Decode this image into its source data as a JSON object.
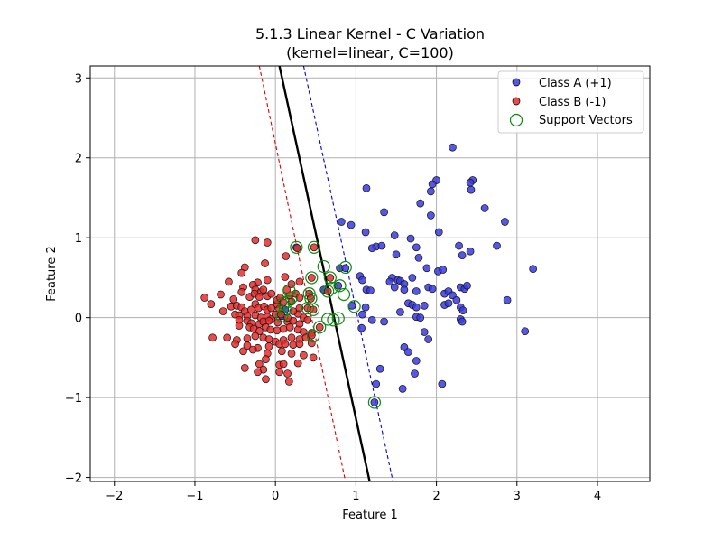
{
  "chart_data": {
    "type": "scatter",
    "title": "5.1.3 Linear Kernel - C Variation",
    "subtitle": "(kernel=linear, C=100)",
    "xlabel": "Feature 1",
    "ylabel": "Feature 2",
    "xlim": [
      -2.3,
      4.65
    ],
    "ylim": [
      -2.05,
      3.15
    ],
    "xticks": [
      -2,
      -1,
      0,
      1,
      2,
      3,
      4
    ],
    "yticks": [
      -2,
      -1,
      0,
      1,
      2,
      3
    ],
    "xtick_labels": [
      "−2",
      "−1",
      "0",
      "1",
      "2",
      "3",
      "4"
    ],
    "ytick_labels": [
      "−2",
      "−1",
      "0",
      "1",
      "2",
      "3"
    ],
    "grid": true,
    "legend_position": "top-right",
    "colors": {
      "class_a": "#3a3ae0",
      "class_b": "#e62b2b",
      "support": "#0a8a0a",
      "boundary": "#000000",
      "margin_a": "#0000e0",
      "margin_b": "#e00000",
      "grid": "#b0b0b0"
    },
    "lines": {
      "decision_boundary": {
        "style": "solid",
        "points": [
          [
            0.05,
            3.15
          ],
          [
            1.17,
            -2.05
          ]
        ]
      },
      "margin_class_a": {
        "style": "dashed",
        "points": [
          [
            0.35,
            3.15
          ],
          [
            1.46,
            -2.05
          ]
        ]
      },
      "margin_class_b": {
        "style": "dashed",
        "points": [
          [
            -0.2,
            3.15
          ],
          [
            0.87,
            -2.05
          ]
        ]
      }
    },
    "series": [
      {
        "name": "Class A (+1)",
        "marker": "circle",
        "points": [
          [
            2.2,
            2.13
          ],
          [
            2.0,
            1.72
          ],
          [
            1.95,
            1.67
          ],
          [
            1.93,
            1.58
          ],
          [
            2.45,
            1.72
          ],
          [
            2.42,
            1.69
          ],
          [
            2.43,
            1.6
          ],
          [
            2.6,
            1.37
          ],
          [
            2.85,
            1.2
          ],
          [
            1.13,
            1.62
          ],
          [
            1.8,
            1.43
          ],
          [
            1.35,
            1.32
          ],
          [
            1.93,
            1.28
          ],
          [
            0.82,
            1.2
          ],
          [
            0.94,
            1.16
          ],
          [
            1.12,
            1.07
          ],
          [
            1.48,
            1.03
          ],
          [
            1.68,
            0.99
          ],
          [
            2.03,
            1.07
          ],
          [
            1.25,
            0.89
          ],
          [
            1.2,
            0.87
          ],
          [
            1.32,
            0.9
          ],
          [
            1.5,
            0.79
          ],
          [
            1.75,
            0.88
          ],
          [
            2.28,
            0.9
          ],
          [
            2.32,
            0.78
          ],
          [
            2.42,
            0.83
          ],
          [
            2.75,
            0.9
          ],
          [
            3.2,
            0.61
          ],
          [
            1.78,
            0.75
          ],
          [
            1.88,
            0.62
          ],
          [
            2.02,
            0.58
          ],
          [
            2.08,
            0.6
          ],
          [
            1.05,
            0.52
          ],
          [
            1.08,
            0.47
          ],
          [
            1.45,
            0.5
          ],
          [
            1.42,
            0.45
          ],
          [
            1.52,
            0.47
          ],
          [
            1.55,
            0.46
          ],
          [
            1.6,
            0.42
          ],
          [
            1.7,
            0.5
          ],
          [
            2.3,
            0.38
          ],
          [
            2.35,
            0.36
          ],
          [
            2.38,
            0.4
          ],
          [
            1.13,
            0.35
          ],
          [
            1.18,
            0.34
          ],
          [
            1.48,
            0.38
          ],
          [
            1.6,
            0.35
          ],
          [
            1.75,
            0.33
          ],
          [
            1.9,
            0.38
          ],
          [
            1.95,
            0.36
          ],
          [
            2.1,
            0.3
          ],
          [
            2.15,
            0.33
          ],
          [
            2.2,
            0.28
          ],
          [
            2.25,
            0.22
          ],
          [
            2.1,
            0.16
          ],
          [
            2.15,
            0.18
          ],
          [
            2.3,
            0.13
          ],
          [
            2.33,
            0.09
          ],
          [
            2.88,
            0.22
          ],
          [
            1.65,
            0.18
          ],
          [
            1.7,
            0.16
          ],
          [
            1.75,
            0.13
          ],
          [
            1.85,
            0.15
          ],
          [
            1.12,
            0.13
          ],
          [
            1.55,
            0.07
          ],
          [
            1.75,
            0.01
          ],
          [
            1.8,
            0.0
          ],
          [
            2.3,
            -0.02
          ],
          [
            2.32,
            -0.05
          ],
          [
            1.08,
            0.04
          ],
          [
            1.2,
            -0.03
          ],
          [
            1.35,
            -0.05
          ],
          [
            1.07,
            -0.13
          ],
          [
            1.85,
            -0.18
          ],
          [
            1.9,
            -0.27
          ],
          [
            3.1,
            -0.17
          ],
          [
            1.6,
            -0.37
          ],
          [
            1.65,
            -0.43
          ],
          [
            1.75,
            -0.54
          ],
          [
            1.73,
            -0.7
          ],
          [
            1.3,
            -0.64
          ],
          [
            2.07,
            -0.83
          ],
          [
            1.25,
            -0.83
          ],
          [
            1.58,
            -0.89
          ],
          [
            0.8,
            0.62
          ],
          [
            0.87,
            0.62
          ],
          [
            0.78,
            0.4
          ],
          [
            0.6,
            0.35
          ],
          [
            0.95,
            0.15
          ],
          [
            0.08,
            0.02
          ],
          [
            0.12,
            0.1
          ],
          [
            0.26,
            0.88
          ],
          [
            1.23,
            -1.06
          ]
        ]
      },
      {
        "name": "Class B (-1)",
        "marker": "circle",
        "points": [
          [
            -0.25,
            0.97
          ],
          [
            -0.1,
            0.94
          ],
          [
            -0.38,
            0.63
          ],
          [
            -0.13,
            0.68
          ],
          [
            -0.42,
            0.56
          ],
          [
            0.13,
            0.77
          ],
          [
            -0.1,
            0.47
          ],
          [
            -0.22,
            0.44
          ],
          [
            -0.28,
            0.41
          ],
          [
            0.12,
            0.51
          ],
          [
            0.3,
            0.45
          ],
          [
            -0.58,
            0.45
          ],
          [
            -0.4,
            0.38
          ],
          [
            -0.25,
            0.35
          ],
          [
            -0.18,
            0.32
          ],
          [
            -0.15,
            0.35
          ],
          [
            -0.88,
            0.25
          ],
          [
            -0.68,
            0.29
          ],
          [
            -0.52,
            0.23
          ],
          [
            -0.42,
            0.32
          ],
          [
            -0.32,
            0.26
          ],
          [
            -0.26,
            0.3
          ],
          [
            -0.2,
            0.26
          ],
          [
            -0.1,
            0.27
          ],
          [
            -0.05,
            0.3
          ],
          [
            -0.8,
            0.17
          ],
          [
            -0.55,
            0.14
          ],
          [
            -0.48,
            0.15
          ],
          [
            -0.42,
            0.13
          ],
          [
            -0.38,
            0.08
          ],
          [
            -0.3,
            0.1
          ],
          [
            -0.25,
            0.17
          ],
          [
            -0.21,
            0.12
          ],
          [
            -0.14,
            0.14
          ],
          [
            -0.1,
            0.1
          ],
          [
            -0.05,
            0.12
          ],
          [
            0.02,
            0.17
          ],
          [
            0.05,
            0.11
          ],
          [
            -0.65,
            0.08
          ],
          [
            -0.5,
            0.04
          ],
          [
            -0.45,
            0.03
          ],
          [
            -0.35,
            0.02
          ],
          [
            -0.25,
            0.03
          ],
          [
            -0.18,
            0.0
          ],
          [
            -0.1,
            0.01
          ],
          [
            -0.05,
            -0.02
          ],
          [
            -0.45,
            -0.03
          ],
          [
            -0.35,
            -0.04
          ],
          [
            -0.3,
            -0.07
          ],
          [
            -0.2,
            -0.08
          ],
          [
            -0.15,
            -0.05
          ],
          [
            -0.08,
            -0.04
          ],
          [
            0.03,
            -0.06
          ],
          [
            0.15,
            -0.05
          ],
          [
            0.22,
            -0.04
          ],
          [
            0.3,
            -0.08
          ],
          [
            -0.45,
            -0.1
          ],
          [
            -0.32,
            -0.12
          ],
          [
            -0.27,
            -0.14
          ],
          [
            -0.2,
            -0.17
          ],
          [
            -0.12,
            -0.12
          ],
          [
            -0.06,
            -0.15
          ],
          [
            0.02,
            -0.16
          ],
          [
            0.1,
            -0.14
          ],
          [
            0.18,
            -0.12
          ],
          [
            0.28,
            -0.15
          ],
          [
            0.35,
            -0.18
          ],
          [
            0.45,
            -0.19
          ],
          [
            -0.78,
            -0.25
          ],
          [
            -0.6,
            -0.25
          ],
          [
            -0.48,
            -0.28
          ],
          [
            -0.35,
            -0.26
          ],
          [
            -0.25,
            -0.23
          ],
          [
            -0.15,
            -0.25
          ],
          [
            -0.08,
            -0.27
          ],
          [
            0.0,
            -0.3
          ],
          [
            0.1,
            -0.28
          ],
          [
            0.2,
            -0.25
          ],
          [
            0.3,
            -0.27
          ],
          [
            0.38,
            -0.25
          ],
          [
            -0.5,
            -0.33
          ],
          [
            -0.35,
            -0.35
          ],
          [
            -0.22,
            -0.38
          ],
          [
            -0.08,
            -0.36
          ],
          [
            0.05,
            -0.33
          ],
          [
            0.12,
            -0.33
          ],
          [
            0.22,
            -0.34
          ],
          [
            0.3,
            -0.33
          ],
          [
            0.45,
            -0.32
          ],
          [
            -0.4,
            -0.42
          ],
          [
            -0.28,
            -0.4
          ],
          [
            -0.1,
            -0.45
          ],
          [
            0.08,
            -0.42
          ],
          [
            0.2,
            -0.45
          ],
          [
            0.35,
            -0.47
          ],
          [
            0.47,
            -0.5
          ],
          [
            -0.12,
            -0.52
          ],
          [
            -0.2,
            -0.58
          ],
          [
            0.05,
            -0.59
          ],
          [
            0.1,
            -0.58
          ],
          [
            0.28,
            -0.57
          ],
          [
            -0.38,
            -0.63
          ],
          [
            -0.15,
            -0.65
          ],
          [
            0.05,
            -0.68
          ],
          [
            0.15,
            -0.7
          ],
          [
            -0.12,
            -0.77
          ],
          [
            0.17,
            -0.8
          ],
          [
            -0.22,
            -0.68
          ],
          [
            0.0,
            0.04
          ],
          [
            0.07,
            0.04
          ],
          [
            0.02,
            0.22
          ],
          [
            0.06,
            0.25
          ],
          [
            0.18,
            0.28
          ],
          [
            0.25,
            0.3
          ],
          [
            0.3,
            0.25
          ],
          [
            0.2,
            0.2
          ],
          [
            0.1,
            0.19
          ],
          [
            0.14,
            0.35
          ],
          [
            0.2,
            0.42
          ],
          [
            0.42,
            0.3
          ],
          [
            0.48,
            0.88
          ],
          [
            0.27,
            0.87
          ],
          [
            0.45,
            0.5
          ],
          [
            0.68,
            0.5
          ],
          [
            0.65,
            0.33
          ],
          [
            0.44,
            0.24
          ],
          [
            0.4,
            0.12
          ],
          [
            0.47,
            0.1
          ],
          [
            0.45,
            -0.22
          ],
          [
            0.55,
            -0.12
          ],
          [
            0.28,
            0.05
          ],
          [
            0.3,
            0.12
          ],
          [
            0.35,
            0.0
          ],
          [
            0.4,
            -0.03
          ],
          [
            0.22,
            0.08
          ],
          [
            0.15,
            0.0
          ]
        ]
      },
      {
        "name": "Support Vectors",
        "marker": "open-circle",
        "points": [
          [
            0.26,
            0.88
          ],
          [
            0.48,
            0.88
          ],
          [
            0.6,
            0.64
          ],
          [
            0.87,
            0.63
          ],
          [
            0.45,
            0.5
          ],
          [
            0.68,
            0.5
          ],
          [
            0.65,
            0.33
          ],
          [
            0.7,
            0.37
          ],
          [
            0.8,
            0.4
          ],
          [
            0.85,
            0.29
          ],
          [
            0.17,
            0.34
          ],
          [
            0.42,
            0.3
          ],
          [
            0.15,
            0.2
          ],
          [
            0.2,
            0.25
          ],
          [
            0.44,
            0.24
          ],
          [
            0.1,
            0.18
          ],
          [
            0.4,
            0.12
          ],
          [
            0.47,
            0.1
          ],
          [
            0.98,
            0.14
          ],
          [
            0.12,
            0.1
          ],
          [
            0.08,
            0.02
          ],
          [
            0.65,
            -0.02
          ],
          [
            0.72,
            -0.03
          ],
          [
            0.78,
            -0.01
          ],
          [
            0.55,
            -0.12
          ],
          [
            0.47,
            -0.23
          ],
          [
            1.23,
            -1.06
          ]
        ]
      }
    ]
  }
}
